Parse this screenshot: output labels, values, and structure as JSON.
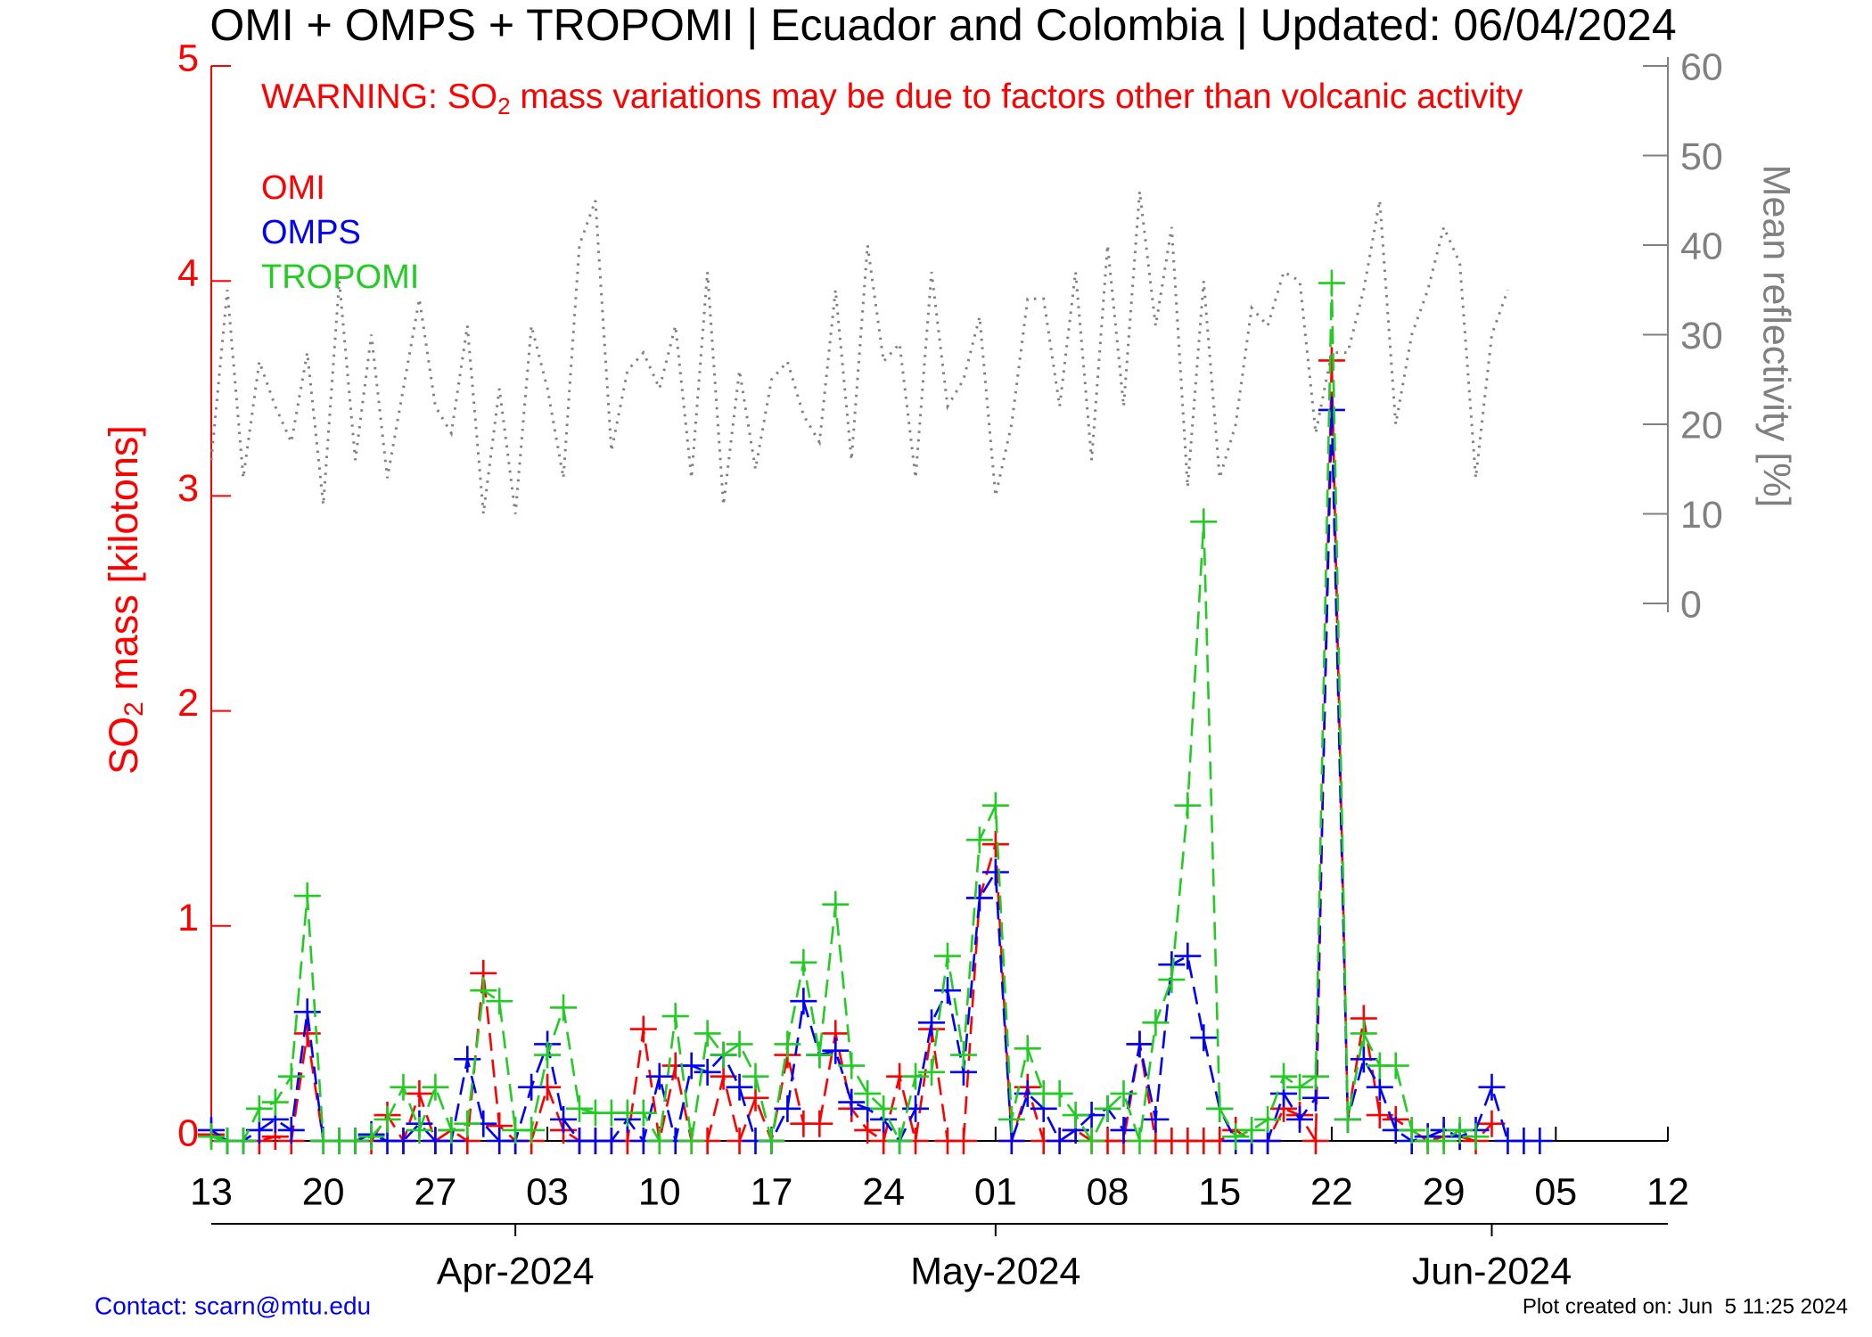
{
  "chart_data": {
    "type": "line",
    "title": "OMI + OMPS + TROPOMI | Ecuador and Colombia | Updated: 06/04/2024",
    "warning": [
      "WARNING: SO",
      "2",
      " mass variations may be due to factors other than volcanic activity"
    ],
    "ylabel": [
      "SO",
      "2",
      " mass [kilotons]"
    ],
    "y2label": "Mean reflectivity [%]",
    "contact": "Contact: scarn@mtu.edu",
    "created": "Plot created on: Jun  5 11:25 2024",
    "legend": "upper left",
    "x": [
      "2024-03-13",
      "2024-03-14",
      "2024-03-15",
      "2024-03-16",
      "2024-03-17",
      "2024-03-18",
      "2024-03-19",
      "2024-03-20",
      "2024-03-21",
      "2024-03-22",
      "2024-03-23",
      "2024-03-24",
      "2024-03-25",
      "2024-03-26",
      "2024-03-27",
      "2024-03-28",
      "2024-03-29",
      "2024-03-30",
      "2024-03-31",
      "2024-04-01",
      "2024-04-02",
      "2024-04-03",
      "2024-04-04",
      "2024-04-05",
      "2024-04-06",
      "2024-04-07",
      "2024-04-08",
      "2024-04-09",
      "2024-04-10",
      "2024-04-11",
      "2024-04-12",
      "2024-04-13",
      "2024-04-14",
      "2024-04-15",
      "2024-04-16",
      "2024-04-17",
      "2024-04-18",
      "2024-04-19",
      "2024-04-20",
      "2024-04-21",
      "2024-04-22",
      "2024-04-23",
      "2024-04-24",
      "2024-04-25",
      "2024-04-26",
      "2024-04-27",
      "2024-04-28",
      "2024-04-29",
      "2024-04-30",
      "2024-05-01",
      "2024-05-02",
      "2024-05-03",
      "2024-05-04",
      "2024-05-05",
      "2024-05-06",
      "2024-05-07",
      "2024-05-08",
      "2024-05-09",
      "2024-05-10",
      "2024-05-11",
      "2024-05-12",
      "2024-05-13",
      "2024-05-14",
      "2024-05-15",
      "2024-05-16",
      "2024-05-17",
      "2024-05-18",
      "2024-05-19",
      "2024-05-20",
      "2024-05-21",
      "2024-05-22",
      "2024-05-23",
      "2024-05-24",
      "2024-05-25",
      "2024-05-26",
      "2024-05-27",
      "2024-05-28",
      "2024-05-29",
      "2024-05-30",
      "2024-05-31",
      "2024-06-01",
      "2024-06-02",
      "2024-06-03",
      "2024-06-04"
    ],
    "series": [
      {
        "name": "OMI",
        "color": "#ff0000",
        "values": [
          0.03,
          0.0,
          0.0,
          0.0,
          0.02,
          0.0,
          0.5,
          0.0,
          0.0,
          0.0,
          0.0,
          0.12,
          0.0,
          0.22,
          0.0,
          0.05,
          0.0,
          0.78,
          0.07,
          0.0,
          0.0,
          0.25,
          0.05,
          0.0,
          0.0,
          0.0,
          0.0,
          0.52,
          0.0,
          0.35,
          0.0,
          0.0,
          0.3,
          0.0,
          0.2,
          0.0,
          0.4,
          0.08,
          0.08,
          0.5,
          0.15,
          0.05,
          0.0,
          0.3,
          0.0,
          0.52,
          0.0,
          0.0,
          1.13,
          1.38,
          0.0,
          0.25,
          0.0,
          0.0,
          0.05,
          0.0,
          0.0,
          0.0,
          0.45,
          0.0,
          0.0,
          0.0,
          0.0,
          0.0,
          0.05,
          0.0,
          0.0,
          0.15,
          0.12,
          0.0,
          3.63,
          0.1,
          0.57,
          0.12,
          0.1,
          0.05,
          0.0,
          0.02,
          0.02,
          0.0,
          0.08,
          null,
          null,
          null
        ]
      },
      {
        "name": "OMPS",
        "color": "#0000ff",
        "values": [
          0.05,
          0.0,
          0.0,
          0.05,
          0.1,
          0.05,
          0.6,
          0.0,
          0.0,
          0.0,
          0.03,
          0.0,
          0.0,
          0.08,
          0.0,
          0.0,
          0.38,
          0.08,
          0.0,
          0.0,
          0.25,
          0.45,
          0.1,
          0.0,
          0.0,
          0.0,
          0.1,
          0.0,
          0.3,
          0.0,
          0.35,
          0.32,
          0.4,
          0.25,
          0.0,
          0.0,
          0.15,
          0.65,
          0.4,
          0.42,
          0.18,
          0.15,
          0.1,
          0.0,
          0.15,
          0.55,
          0.7,
          0.32,
          1.13,
          1.25,
          0.0,
          0.22,
          0.15,
          0.0,
          0.05,
          0.12,
          0.15,
          0.05,
          0.45,
          0.1,
          0.82,
          0.86,
          0.48,
          0.15,
          0.0,
          0.0,
          0.0,
          0.22,
          0.1,
          0.2,
          3.4,
          0.1,
          0.38,
          0.25,
          0.05,
          0.0,
          0.02,
          0.05,
          0.02,
          0.05,
          0.25,
          0.0,
          0.0,
          0.0
        ]
      },
      {
        "name": "TROPOMI",
        "color": "#22cc22",
        "values": [
          0.02,
          0.0,
          0.0,
          0.15,
          0.18,
          0.3,
          1.14,
          0.0,
          0.0,
          0.0,
          0.02,
          0.1,
          0.25,
          0.05,
          0.25,
          0.05,
          0.08,
          0.7,
          0.65,
          0.05,
          0.05,
          0.4,
          0.62,
          0.15,
          0.13,
          0.13,
          0.13,
          0.13,
          0.0,
          0.58,
          0.0,
          0.5,
          0.4,
          0.45,
          0.3,
          0.0,
          0.45,
          0.83,
          0.4,
          1.1,
          0.35,
          0.22,
          0.15,
          0.0,
          0.3,
          0.32,
          0.86,
          0.4,
          1.4,
          1.56,
          0.1,
          0.43,
          0.22,
          0.22,
          0.12,
          0.0,
          0.15,
          0.22,
          0.0,
          0.55,
          0.75,
          1.56,
          2.88,
          0.15,
          0.02,
          0.05,
          0.1,
          0.3,
          0.25,
          0.3,
          3.99,
          0.1,
          0.5,
          0.35,
          0.35,
          0.05,
          0.0,
          0.0,
          0.05,
          0.02,
          null,
          null,
          null,
          null
        ]
      },
      {
        "axis": "y2",
        "color": "#808080",
        "values": [
          16,
          35,
          14,
          27,
          22,
          18,
          28,
          11,
          36,
          16,
          30,
          14,
          24,
          34,
          22,
          19,
          31,
          10,
          24,
          10,
          31,
          24,
          14,
          40,
          45,
          17,
          26,
          28,
          24,
          31,
          14,
          37,
          11,
          26,
          15,
          25,
          27,
          21,
          18,
          35,
          16,
          40,
          27,
          29,
          14,
          37,
          22,
          25,
          32,
          12,
          20,
          34,
          34,
          22,
          37,
          16,
          40,
          22,
          46,
          31,
          42,
          13,
          36,
          14,
          20,
          33,
          31,
          37,
          36,
          19,
          28,
          28,
          35,
          45,
          20,
          30,
          35,
          42,
          38,
          14,
          30,
          35,
          null,
          null
        ]
      }
    ],
    "xlim": [
      "2024-03-13",
      "2024-06-12"
    ],
    "xticks": [
      {
        "value": "2024-03-13",
        "label": "13"
      },
      {
        "value": "2024-03-20",
        "label": "20"
      },
      {
        "value": "2024-03-27",
        "label": "27"
      },
      {
        "value": "2024-04-03",
        "label": "03"
      },
      {
        "value": "2024-04-10",
        "label": "10"
      },
      {
        "value": "2024-04-17",
        "label": "17"
      },
      {
        "value": "2024-04-24",
        "label": "24"
      },
      {
        "value": "2024-05-01",
        "label": "01"
      },
      {
        "value": "2024-05-08",
        "label": "08"
      },
      {
        "value": "2024-05-15",
        "label": "15"
      },
      {
        "value": "2024-05-22",
        "label": "22"
      },
      {
        "value": "2024-05-29",
        "label": "29"
      },
      {
        "value": "2024-06-05",
        "label": "05"
      },
      {
        "value": "2024-06-12",
        "label": "12"
      }
    ],
    "month_ticks": [
      {
        "value": "2024-04-01",
        "label": "Apr-2024"
      },
      {
        "value": "2024-05-01",
        "label": "May-2024"
      },
      {
        "value": "2024-06-01",
        "label": "Jun-2024"
      }
    ],
    "ylim": [
      0,
      5
    ],
    "yticks": [
      0,
      1,
      2,
      3,
      4,
      5
    ],
    "y2lim": [
      -60,
      60
    ],
    "y2ticks": [
      0,
      10,
      20,
      30,
      40,
      50,
      60
    ]
  }
}
